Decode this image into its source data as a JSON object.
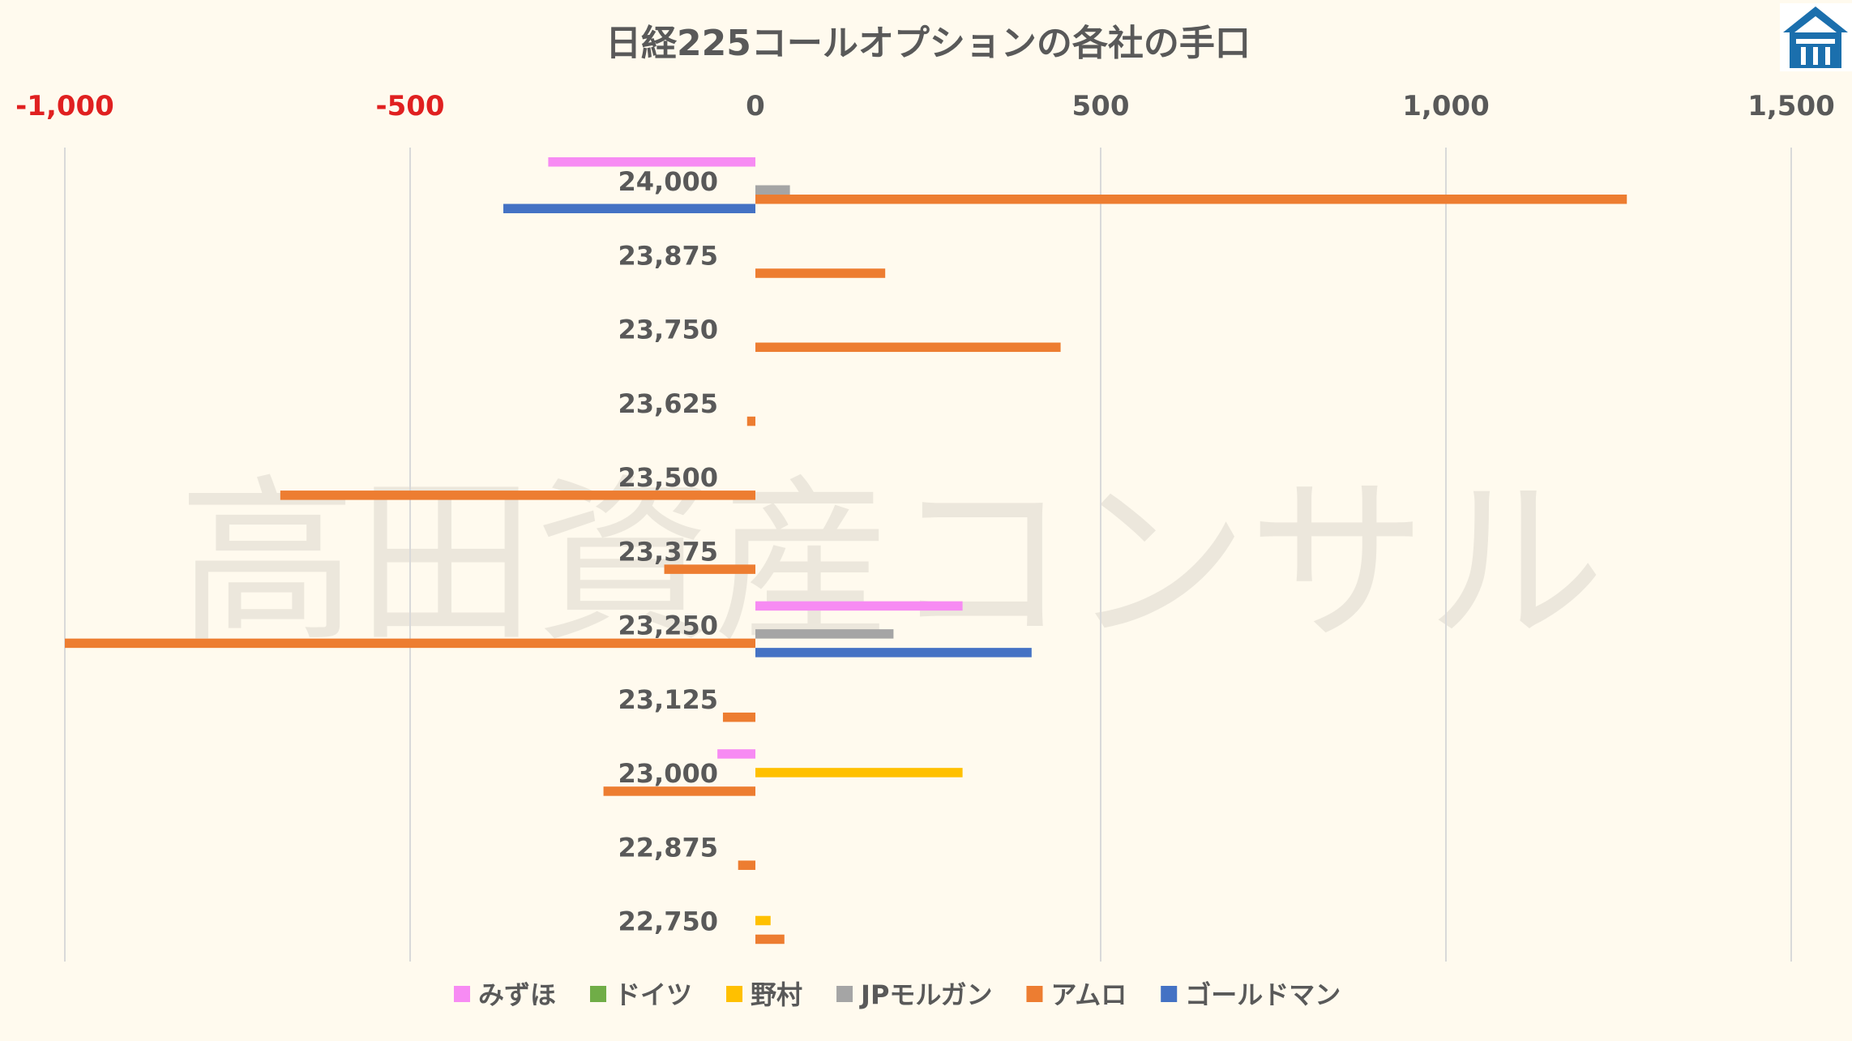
{
  "chart_data": {
    "type": "bar",
    "orientation": "horizontal",
    "title": "日経225コールオプションの各社の手口",
    "watermark": "高田資産コンサル",
    "xlim": [
      -1000,
      1500
    ],
    "xticks": [
      -1000,
      -500,
      0,
      500,
      1000,
      1500
    ],
    "xtick_labels": [
      "-1,000",
      "-500",
      "0",
      "500",
      "1,000",
      "1,500"
    ],
    "negative_tick_color": "#e02020",
    "positive_tick_color": "#595959",
    "grid": true,
    "legend_position": "bottom",
    "categories": [
      "24,000",
      "23,875",
      "23,750",
      "23,625",
      "23,500",
      "23,375",
      "23,250",
      "23,125",
      "23,000",
      "22,875",
      "22,750"
    ],
    "series": [
      {
        "name": "みずほ",
        "color": "#f78bf3",
        "values": [
          -300,
          0,
          0,
          0,
          0,
          0,
          300,
          0,
          -55,
          0,
          0
        ]
      },
      {
        "name": "ドイツ",
        "color": "#70ad47",
        "values": [
          0,
          0,
          0,
          0,
          0,
          0,
          0,
          0,
          0,
          0,
          0
        ]
      },
      {
        "name": "野村",
        "color": "#ffc000",
        "values": [
          0,
          0,
          0,
          0,
          0,
          0,
          0,
          0,
          300,
          0,
          22
        ]
      },
      {
        "name": "JPモルガン",
        "color": "#a5a5a5",
        "values": [
          50,
          0,
          0,
          0,
          0,
          0,
          200,
          0,
          0,
          0,
          0
        ]
      },
      {
        "name": "アムロ",
        "color": "#ed7d31",
        "values": [
          1262,
          188,
          442,
          -12,
          -688,
          -132,
          -1000,
          -47,
          -220,
          -25,
          42
        ]
      },
      {
        "name": "ゴールドマン",
        "color": "#4472c4",
        "values": [
          -365,
          0,
          0,
          0,
          0,
          0,
          400,
          0,
          0,
          0,
          0
        ]
      }
    ]
  },
  "logo": {
    "icon": "building-roof-logo",
    "color": "#1b6fad"
  }
}
